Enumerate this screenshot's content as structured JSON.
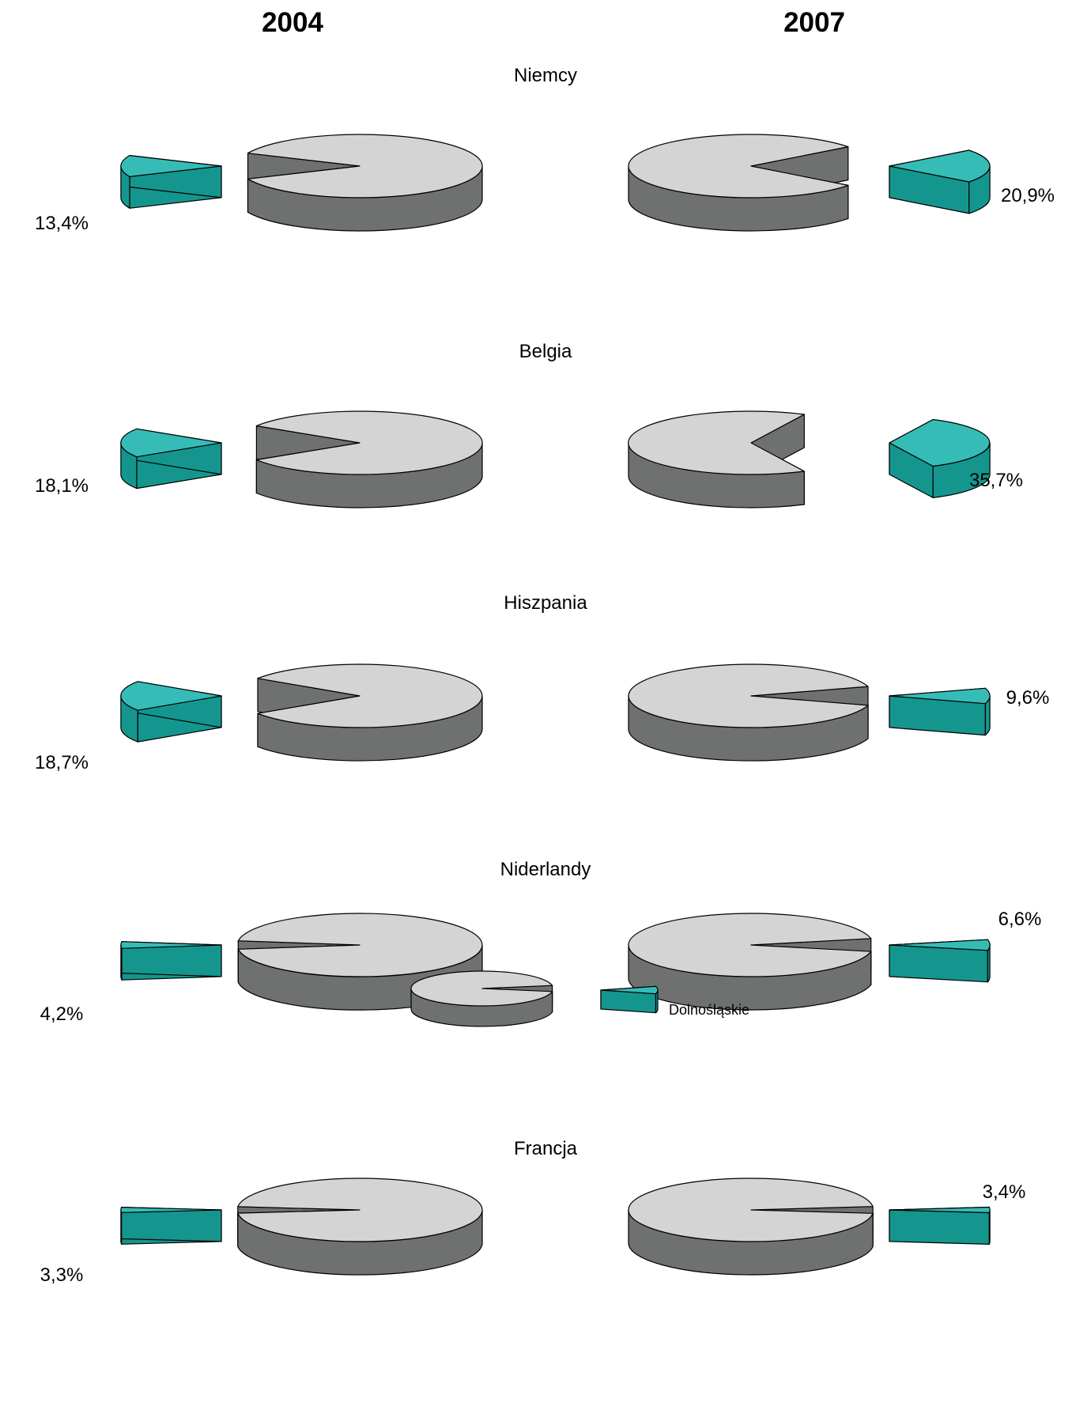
{
  "colors": {
    "other_top": "#d4d4d4",
    "other_side": "#6f7171",
    "region_top": "#36bcb7",
    "region_side": "#14968e",
    "outline": "#000000"
  },
  "chart_data": {
    "type": "pie",
    "columns": [
      "2004",
      "2007"
    ],
    "legend": {
      "label": "Dolnośląskie",
      "placement": "bottom-center"
    },
    "series_label": "Dolnośląskie",
    "rows": [
      {
        "country": "Niemcy",
        "values": [
          13.4,
          20.9
        ],
        "labels": [
          "13,4%",
          "20,9%"
        ]
      },
      {
        "country": "Belgia",
        "values": [
          18.1,
          35.7
        ],
        "labels": [
          "18,1%",
          "35,7%"
        ]
      },
      {
        "country": "Hiszpania",
        "values": [
          18.7,
          9.6
        ],
        "labels": [
          "18,7%",
          "9,6%"
        ]
      },
      {
        "country": "Niderlandy",
        "values": [
          4.2,
          6.6
        ],
        "labels": [
          "4,2%",
          "6,6%"
        ]
      },
      {
        "country": "Francja",
        "values": [
          3.3,
          3.4
        ],
        "labels": [
          "3,3%",
          "3,4%"
        ]
      }
    ]
  }
}
